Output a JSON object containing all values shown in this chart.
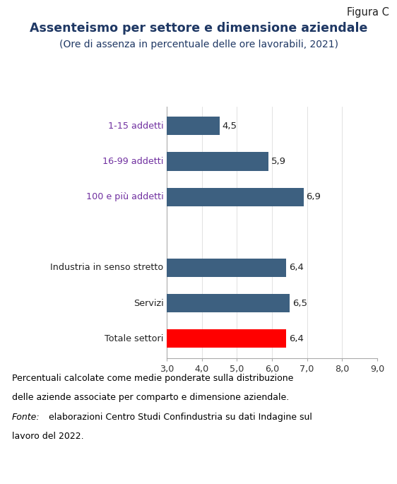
{
  "figure_label": "Figura C",
  "title": "Assenteismo per settore e dimensione aziendale",
  "subtitle": "(Ore di assenza in percentuale delle ore lavorabili, 2021)",
  "categories": [
    "Totale settori",
    "Servizi",
    "Industria in senso stretto",
    "",
    "100 e più addetti",
    "16-99 addetti",
    "1-15 addetti"
  ],
  "values": [
    6.4,
    6.5,
    6.4,
    null,
    6.9,
    5.9,
    4.5
  ],
  "bar_colors": [
    "#ff0000",
    "#3d6080",
    "#3d6080",
    null,
    "#3d6080",
    "#3d6080",
    "#3d6080"
  ],
  "value_labels": [
    "6,4",
    "6,5",
    "6,4",
    "",
    "6,9",
    "5,9",
    "4,5"
  ],
  "xlim": [
    3.0,
    9.0
  ],
  "xticks": [
    3.0,
    4.0,
    5.0,
    6.0,
    7.0,
    8.0,
    9.0
  ],
  "xtick_labels": [
    "3,0",
    "4,0",
    "5,0",
    "6,0",
    "7,0",
    "8,0",
    "9,0"
  ],
  "bar_height": 0.52,
  "footnote_line1": "Percentuali calcolate come medie ponderate sulla distribuzione",
  "footnote_line2": "delle aziende associate per comparto e dimensione aziendale.",
  "footnote_line3_italic": "Fonte:",
  "footnote_line3_normal": " elaborazioni Centro Studi Confindustria su dati Indagine sul",
  "footnote_line4": "lavoro del 2022.",
  "label_color_purple": "#7030a0",
  "label_color_dark": "#222222",
  "background_color": "#ffffff",
  "chart_bg_color": "#ffffff",
  "title_color": "#1f3864",
  "subtitle_color": "#1f3864",
  "footnote_color": "#000000",
  "figure_label_color": "#222222"
}
